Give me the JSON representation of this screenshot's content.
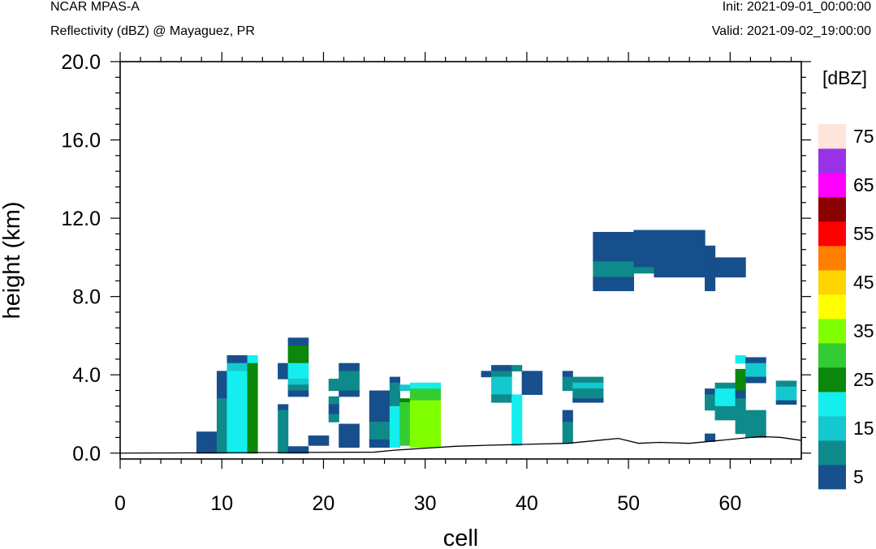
{
  "header": {
    "model": "NCAR MPAS-A",
    "field": "Reflectivity (dBZ) @ Mayaguez, PR",
    "init": "Init: 2021-09-01_00:00:00",
    "valid": "Valid: 2021-09-02_19:00:00"
  },
  "chart_data": {
    "type": "heatmap",
    "title": "Reflectivity (dBZ) @ Mayaguez, PR",
    "xlabel": "cell",
    "ylabel": "height (km)",
    "xlim": [
      0,
      67
    ],
    "ylim": [
      -0.3,
      20.0
    ],
    "x_ticks": [
      0,
      10,
      20,
      30,
      40,
      50,
      60
    ],
    "x_tick_labels": [
      "0",
      "10",
      "20",
      "30",
      "40",
      "50",
      "60"
    ],
    "y_ticks": [
      0,
      4,
      8,
      12,
      16,
      20
    ],
    "y_tick_labels": [
      "0.0",
      "4.0",
      "8.0",
      "12.0",
      "16.0",
      "20.0"
    ],
    "colorbar": {
      "title": "[dBZ]",
      "levels": [
        5,
        10,
        15,
        20,
        25,
        30,
        35,
        40,
        45,
        50,
        55,
        60,
        65,
        70,
        75
      ],
      "tick_labels": [
        "5",
        "15",
        "25",
        "35",
        "45",
        "55",
        "65",
        "75"
      ],
      "colors": [
        "#174f8c",
        "#0f8a8a",
        "#14c8cf",
        "#14eeee",
        "#0b870b",
        "#33cc33",
        "#80ff00",
        "#ffff00",
        "#ffd400",
        "#ff8000",
        "#ff0000",
        "#8b0000",
        "#ff00ff",
        "#9932e6",
        "#ffe4dc"
      ]
    },
    "terrain": [
      [
        0,
        0.0
      ],
      [
        25,
        0.05
      ],
      [
        27,
        0.15
      ],
      [
        30,
        0.25
      ],
      [
        33,
        0.35
      ],
      [
        36,
        0.4
      ],
      [
        40,
        0.45
      ],
      [
        44,
        0.5
      ],
      [
        47,
        0.65
      ],
      [
        49,
        0.75
      ],
      [
        51,
        0.5
      ],
      [
        53,
        0.55
      ],
      [
        56,
        0.5
      ],
      [
        59,
        0.65
      ],
      [
        61,
        0.75
      ],
      [
        63,
        0.85
      ],
      [
        65,
        0.8
      ],
      [
        67,
        0.65
      ]
    ],
    "cells": [
      [
        7.5,
        9.5,
        0.0,
        1.1,
        5
      ],
      [
        9.5,
        10.5,
        2.8,
        4.2,
        5
      ],
      [
        9.5,
        10.5,
        0.0,
        2.8,
        10
      ],
      [
        10.5,
        12.5,
        4.6,
        5.0,
        5
      ],
      [
        10.5,
        12.5,
        4.2,
        4.6,
        15
      ],
      [
        10.5,
        12.5,
        0.0,
        4.2,
        20
      ],
      [
        12.5,
        13.5,
        4.6,
        5.0,
        20
      ],
      [
        12.5,
        13.5,
        0.0,
        4.6,
        25
      ],
      [
        15.5,
        16.5,
        3.8,
        4.6,
        5
      ],
      [
        15.5,
        16.5,
        2.2,
        2.5,
        5
      ],
      [
        15.5,
        16.5,
        0.0,
        2.2,
        10
      ],
      [
        16.5,
        18.5,
        5.5,
        5.9,
        5
      ],
      [
        16.5,
        18.5,
        4.6,
        5.5,
        25
      ],
      [
        16.5,
        18.5,
        3.8,
        4.6,
        20
      ],
      [
        16.5,
        18.5,
        3.5,
        3.8,
        15
      ],
      [
        16.5,
        18.5,
        3.2,
        3.5,
        10
      ],
      [
        16.5,
        18.5,
        2.9,
        3.2,
        5
      ],
      [
        16.5,
        18.5,
        0.0,
        0.35,
        5
      ],
      [
        18.5,
        20.5,
        0.4,
        0.9,
        5
      ],
      [
        20.5,
        21.5,
        3.2,
        3.8,
        10
      ],
      [
        20.5,
        21.5,
        2.5,
        2.9,
        10
      ],
      [
        20.5,
        21.5,
        2.0,
        2.5,
        5
      ],
      [
        20.5,
        21.5,
        1.6,
        2.0,
        10
      ],
      [
        21.5,
        23.5,
        4.2,
        4.6,
        5
      ],
      [
        21.5,
        23.5,
        3.2,
        4.2,
        10
      ],
      [
        21.5,
        23.5,
        2.9,
        3.2,
        5
      ],
      [
        21.5,
        23.5,
        0.3,
        1.5,
        5
      ],
      [
        24.5,
        26.5,
        1.6,
        3.2,
        5
      ],
      [
        24.5,
        26.5,
        0.7,
        1.6,
        10
      ],
      [
        24.5,
        26.5,
        0.3,
        0.7,
        5
      ],
      [
        26.5,
        27.5,
        3.6,
        3.9,
        5
      ],
      [
        26.5,
        27.5,
        2.4,
        3.6,
        10
      ],
      [
        26.5,
        27.5,
        0.3,
        2.4,
        20
      ],
      [
        27.5,
        28.5,
        3.2,
        3.5,
        15
      ],
      [
        27.5,
        28.5,
        2.6,
        2.8,
        25
      ],
      [
        27.5,
        28.5,
        0.4,
        2.6,
        30
      ],
      [
        28.5,
        31.5,
        3.3,
        3.6,
        20
      ],
      [
        28.5,
        31.5,
        2.7,
        3.3,
        30
      ],
      [
        28.5,
        31.5,
        0.3,
        2.7,
        35
      ],
      [
        35.5,
        36.5,
        3.9,
        4.2,
        5
      ],
      [
        36.5,
        38.5,
        4.2,
        4.5,
        5
      ],
      [
        36.5,
        38.5,
        3.9,
        4.2,
        10
      ],
      [
        36.5,
        38.5,
        3.0,
        3.9,
        15
      ],
      [
        36.5,
        38.5,
        2.6,
        3.0,
        10
      ],
      [
        38.5,
        39.5,
        4.2,
        4.5,
        10
      ],
      [
        38.5,
        39.5,
        0.4,
        3.0,
        20
      ],
      [
        39.5,
        41.5,
        3.0,
        4.2,
        5
      ],
      [
        43.5,
        44.5,
        3.9,
        4.2,
        5
      ],
      [
        43.5,
        44.5,
        3.2,
        3.9,
        10
      ],
      [
        43.5,
        44.5,
        1.6,
        2.2,
        5
      ],
      [
        43.5,
        44.5,
        0.5,
        1.6,
        10
      ],
      [
        44.5,
        47.5,
        3.6,
        3.9,
        10
      ],
      [
        44.5,
        47.5,
        3.3,
        3.6,
        15
      ],
      [
        44.5,
        47.5,
        2.8,
        3.3,
        10
      ],
      [
        44.5,
        47.5,
        2.6,
        2.8,
        5
      ],
      [
        46.5,
        50.5,
        9.8,
        11.3,
        5
      ],
      [
        46.5,
        50.5,
        9.0,
        9.8,
        10
      ],
      [
        46.5,
        50.5,
        8.3,
        9.0,
        5
      ],
      [
        50.5,
        52.5,
        9.5,
        11.4,
        5
      ],
      [
        50.5,
        52.5,
        9.2,
        9.5,
        10
      ],
      [
        52.5,
        57.5,
        9.0,
        11.4,
        5
      ],
      [
        57.5,
        58.5,
        8.3,
        10.6,
        5
      ],
      [
        58.5,
        61.5,
        9.0,
        10.0,
        5
      ],
      [
        57.5,
        58.5,
        3.0,
        3.3,
        5
      ],
      [
        57.5,
        58.5,
        2.2,
        3.0,
        10
      ],
      [
        57.5,
        58.5,
        0.6,
        1.0,
        5
      ],
      [
        58.5,
        60.5,
        3.3,
        3.6,
        10
      ],
      [
        58.5,
        60.5,
        2.4,
        3.3,
        20
      ],
      [
        58.5,
        60.5,
        1.7,
        2.4,
        10
      ],
      [
        60.5,
        61.5,
        4.6,
        5.0,
        20
      ],
      [
        60.5,
        61.5,
        3.2,
        4.3,
        25
      ],
      [
        60.5,
        61.5,
        2.8,
        3.2,
        5
      ],
      [
        60.5,
        61.5,
        1.0,
        2.8,
        10
      ],
      [
        61.5,
        63.5,
        4.6,
        4.9,
        5
      ],
      [
        61.5,
        63.5,
        3.9,
        4.6,
        15
      ],
      [
        61.5,
        63.5,
        3.6,
        3.9,
        5
      ],
      [
        61.5,
        63.5,
        0.8,
        2.2,
        10
      ],
      [
        64.5,
        66.5,
        3.4,
        3.7,
        10
      ],
      [
        64.5,
        66.5,
        2.7,
        3.4,
        15
      ],
      [
        64.5,
        66.5,
        2.5,
        2.7,
        5
      ]
    ]
  }
}
